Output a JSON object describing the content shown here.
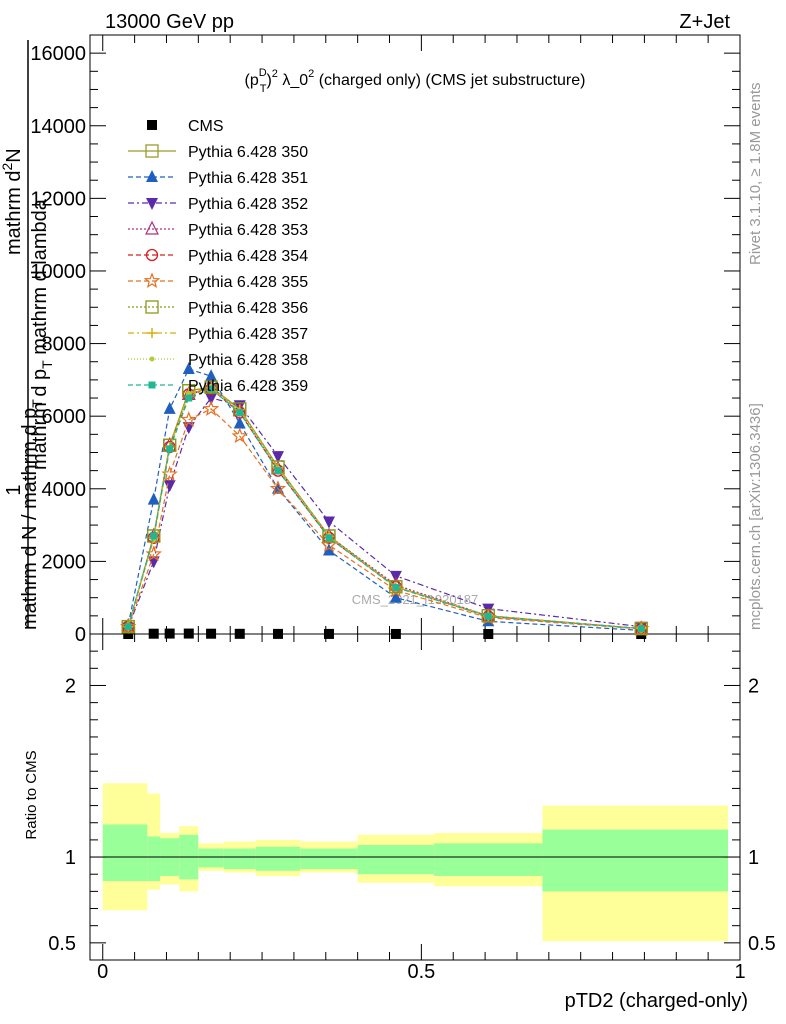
{
  "header": {
    "left": "13000 GeV pp",
    "right": "Z+Jet"
  },
  "side_text": {
    "rivet": "Rivet 3.1.10, ≥ 1.8M events",
    "mcplots": "mcplots.cern.ch [arXiv:1306.3436]"
  },
  "plot_title": {
    "p": "(p",
    "sup_d": "D",
    "sub_t": "T",
    "close": ")",
    "sup_2": "2",
    "lambda": " λ_0",
    "sup_2b": "2",
    "rest": " (charged only) (CMS jet substructure)"
  },
  "ylabel_main": {
    "top_line": "mathrm d",
    "top_sup": "2",
    "top_n": "N",
    "mid_line": "mathrm d p",
    "mid_sub": "T",
    "mid_rest": " mathrm d lambda",
    "one": "1",
    "bottom_line": "mathrm d N / mathrm d p",
    "bottom_sub": "T"
  },
  "ylabel_ratio": "Ratio to CMS",
  "xlabel": "pTD2 (charged-only)",
  "watermark": "CMS_2021_I1920187",
  "colors": {
    "band_inner": "#99ff99",
    "band_outer": "#ffff99",
    "ref_line": "#000000"
  },
  "chart_data": {
    "type": "line",
    "x": [
      0.04,
      0.08,
      0.105,
      0.135,
      0.17,
      0.215,
      0.275,
      0.355,
      0.46,
      0.605,
      0.845
    ],
    "xlim": [
      -0.02,
      1.0
    ],
    "ylim": [
      0,
      16500
    ],
    "xticks": [
      0,
      0.5,
      1
    ],
    "xtick_labels": [
      "0",
      "0.5",
      "1"
    ],
    "yticks": [
      0,
      2000,
      4000,
      6000,
      8000,
      10000,
      12000,
      14000,
      16000
    ],
    "ytick_labels": [
      "0",
      "2000",
      "4000",
      "6000",
      "8000",
      "10000",
      "12000",
      "14000",
      "16000"
    ],
    "legend_position": "top-left",
    "series": [
      {
        "name": "CMS",
        "color": "#000000",
        "dash": "none",
        "marker": "square-filled",
        "values": [
          0,
          8,
          12,
          12,
          8,
          5,
          3,
          2,
          1,
          0,
          0
        ]
      },
      {
        "name": "Pythia 6.428 350",
        "color": "#9a9a2e",
        "dash": "none",
        "marker": "square-open",
        "values": [
          200,
          2700,
          5200,
          6700,
          6800,
          6200,
          4600,
          2700,
          1300,
          500,
          150
        ]
      },
      {
        "name": "Pythia 6.428 351",
        "color": "#1f5fbf",
        "dash": "5,3",
        "marker": "triangle-up-filled",
        "values": [
          250,
          3700,
          6200,
          7300,
          7100,
          5800,
          4000,
          2300,
          1000,
          350,
          100
        ]
      },
      {
        "name": "Pythia 6.428 352",
        "color": "#5a2aa8",
        "dash": "6,3,2,3",
        "marker": "triangle-down-filled",
        "values": [
          180,
          2000,
          4100,
          5700,
          6500,
          6300,
          4900,
          3100,
          1600,
          700,
          200
        ]
      },
      {
        "name": "Pythia 6.428 353",
        "color": "#b0307a",
        "dash": "2,2",
        "marker": "triangle-up-open",
        "values": [
          200,
          2700,
          5200,
          6600,
          6800,
          6150,
          4550,
          2700,
          1350,
          500,
          150
        ]
      },
      {
        "name": "Pythia 6.428 354",
        "color": "#d42020",
        "dash": "5,3",
        "marker": "circle-open",
        "values": [
          200,
          2650,
          5150,
          6600,
          6750,
          6100,
          4500,
          2650,
          1300,
          480,
          150
        ]
      },
      {
        "name": "Pythia 6.428 355",
        "color": "#e87020",
        "dash": "5,3",
        "marker": "star-open",
        "values": [
          200,
          2200,
          4400,
          5900,
          6200,
          5450,
          4000,
          2450,
          1200,
          450,
          140
        ]
      },
      {
        "name": "Pythia 6.428 356",
        "color": "#8a9a1a",
        "dash": "2,2",
        "marker": "square-open",
        "values": [
          205,
          2700,
          5200,
          6700,
          6800,
          6200,
          4600,
          2700,
          1300,
          500,
          150
        ]
      },
      {
        "name": "Pythia 6.428 357",
        "color": "#d4b010",
        "dash": "6,3,2,3",
        "marker": "cross",
        "values": [
          200,
          2650,
          5150,
          6650,
          6780,
          6180,
          4580,
          2690,
          1300,
          500,
          150
        ]
      },
      {
        "name": "Pythia 6.428 358",
        "color": "#b8c838",
        "dash": "1,2",
        "marker": "dot",
        "values": [
          200,
          2600,
          5100,
          6600,
          6750,
          6150,
          4560,
          2680,
          1290,
          490,
          150
        ]
      },
      {
        "name": "Pythia 6.428 359",
        "color": "#20b890",
        "dash": "5,3",
        "marker": "square-small-filled",
        "values": [
          200,
          2700,
          5100,
          6500,
          6750,
          6100,
          4500,
          2650,
          1280,
          490,
          150
        ]
      }
    ],
    "ratio": {
      "ylabel": "Ratio to CMS",
      "ylim": [
        0.4,
        2.3
      ],
      "yticks": [
        0.5,
        1,
        2
      ],
      "ytick_labels": [
        "0.5",
        "1",
        "2"
      ],
      "bins": [
        {
          "lo": 0.0,
          "hi": 0.07,
          "inner": [
            0.86,
            1.19
          ],
          "outer": [
            0.69,
            1.43
          ]
        },
        {
          "lo": 0.07,
          "hi": 0.09,
          "inner": [
            0.86,
            1.12
          ],
          "outer": [
            0.81,
            1.37
          ]
        },
        {
          "lo": 0.09,
          "hi": 0.12,
          "inner": [
            0.89,
            1.11
          ],
          "outer": [
            0.84,
            1.14
          ]
        },
        {
          "lo": 0.12,
          "hi": 0.15,
          "inner": [
            0.87,
            1.13
          ],
          "outer": [
            0.8,
            1.18
          ]
        },
        {
          "lo": 0.15,
          "hi": 0.19,
          "inner": [
            0.94,
            1.05
          ],
          "outer": [
            0.92,
            1.08
          ]
        },
        {
          "lo": 0.19,
          "hi": 0.24,
          "inner": [
            0.93,
            1.05
          ],
          "outer": [
            0.91,
            1.09
          ]
        },
        {
          "lo": 0.24,
          "hi": 0.31,
          "inner": [
            0.92,
            1.06
          ],
          "outer": [
            0.89,
            1.1
          ]
        },
        {
          "lo": 0.31,
          "hi": 0.4,
          "inner": [
            0.93,
            1.05
          ],
          "outer": [
            0.91,
            1.09
          ]
        },
        {
          "lo": 0.4,
          "hi": 0.52,
          "inner": [
            0.9,
            1.07
          ],
          "outer": [
            0.85,
            1.13
          ]
        },
        {
          "lo": 0.52,
          "hi": 0.69,
          "inner": [
            0.89,
            1.08
          ],
          "outer": [
            0.83,
            1.14
          ]
        },
        {
          "lo": 0.69,
          "hi": 1.0,
          "inner": [
            0.8,
            1.16
          ],
          "outer": [
            0.51,
            1.3
          ]
        }
      ]
    }
  }
}
